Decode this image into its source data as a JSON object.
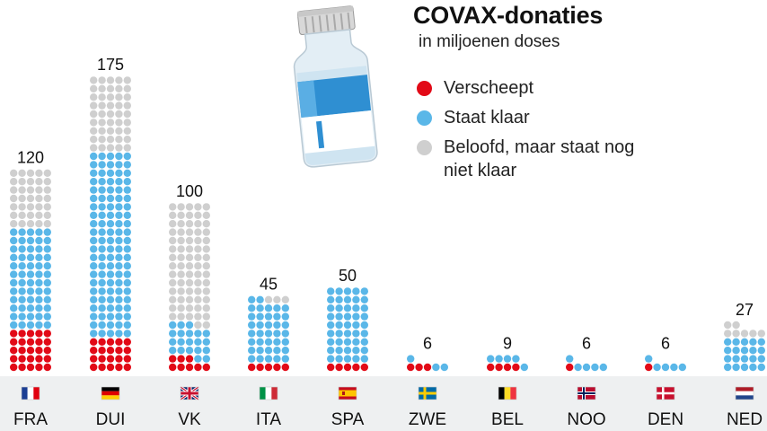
{
  "header": {
    "title": "COVAX-donaties",
    "subtitle": "in miljoenen doses"
  },
  "legend": [
    {
      "label": "Verscheept",
      "color": "#e20a17"
    },
    {
      "label": "Staat klaar",
      "color": "#5ab7e8"
    },
    {
      "label": "Beloofd, maar staat nog niet klaar",
      "color": "#cfcfcf"
    }
  ],
  "icons": {
    "illustration": "vaccine-vial-icon"
  },
  "chart_data": {
    "type": "bar",
    "title": "COVAX-donaties",
    "subtitle": "in miljoenen doses",
    "categories": [
      "FRA",
      "DUI",
      "VK",
      "ITA",
      "SPA",
      "ZWE",
      "BEL",
      "NOO",
      "DEN",
      "NED"
    ],
    "totals": [
      120,
      175,
      100,
      45,
      50,
      6,
      9,
      6,
      6,
      27
    ],
    "series": [
      {
        "name": "Verscheept",
        "color": "#e20a17",
        "values": [
          25,
          20,
          8,
          5,
          5,
          3,
          4,
          1,
          1,
          0
        ]
      },
      {
        "name": "Staat klaar",
        "color": "#5ab7e8",
        "values": [
          60,
          110,
          20,
          37,
          45,
          3,
          5,
          5,
          5,
          20
        ]
      },
      {
        "name": "Beloofd, maar staat nog niet klaar",
        "color": "#cfcfcf",
        "values": [
          35,
          45,
          72,
          3,
          0,
          0,
          0,
          0,
          0,
          7
        ]
      }
    ],
    "flags": [
      "flag-fra-icon",
      "flag-dui-icon",
      "flag-vk-icon",
      "flag-ita-icon",
      "flag-spa-icon",
      "flag-zwe-icon",
      "flag-bel-icon",
      "flag-noo-icon",
      "flag-den-icon",
      "flag-ned-icon"
    ],
    "unit_per_dot": 1,
    "xlabel": "",
    "ylabel": ""
  }
}
